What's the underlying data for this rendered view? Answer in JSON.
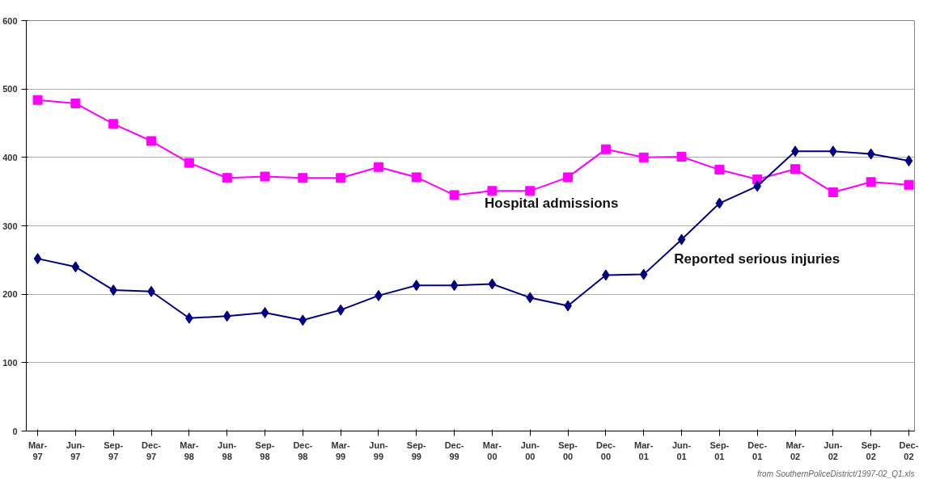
{
  "chart_data": {
    "type": "line",
    "categories": [
      "Mar-97",
      "Jun-97",
      "Sep-97",
      "Dec-97",
      "Mar-98",
      "Jun-98",
      "Sep-98",
      "Dec-98",
      "Mar-99",
      "Jun-99",
      "Sep-99",
      "Dec-99",
      "Mar-00",
      "Jun-00",
      "Sep-00",
      "Dec-00",
      "Mar-01",
      "Jun-01",
      "Sep-01",
      "Dec-01",
      "Mar-02",
      "Jun-02",
      "Sep-02",
      "Dec-02"
    ],
    "series": [
      {
        "name": "Hospital admissions",
        "color": "#ff00ff",
        "marker": "square",
        "values": [
          484,
          479,
          449,
          424,
          392,
          370,
          372,
          370,
          370,
          386,
          371,
          345,
          351,
          351,
          371,
          412,
          400,
          401,
          382,
          368,
          383,
          349,
          364,
          360
        ]
      },
      {
        "name": "Reported serious injuries",
        "color": "#000080",
        "marker": "diamond",
        "values": [
          252,
          240,
          206,
          204,
          165,
          168,
          173,
          162,
          177,
          198,
          213,
          213,
          215,
          195,
          183,
          228,
          229,
          280,
          333,
          358,
          409,
          409,
          405,
          395
        ]
      }
    ],
    "ylim": [
      0,
      600
    ],
    "yticks": [
      0,
      100,
      200,
      300,
      400,
      500,
      600
    ],
    "grid": "y",
    "annotations": [
      "from SouthernPoliceDistrict/1997-02_Q1.xls"
    ]
  }
}
